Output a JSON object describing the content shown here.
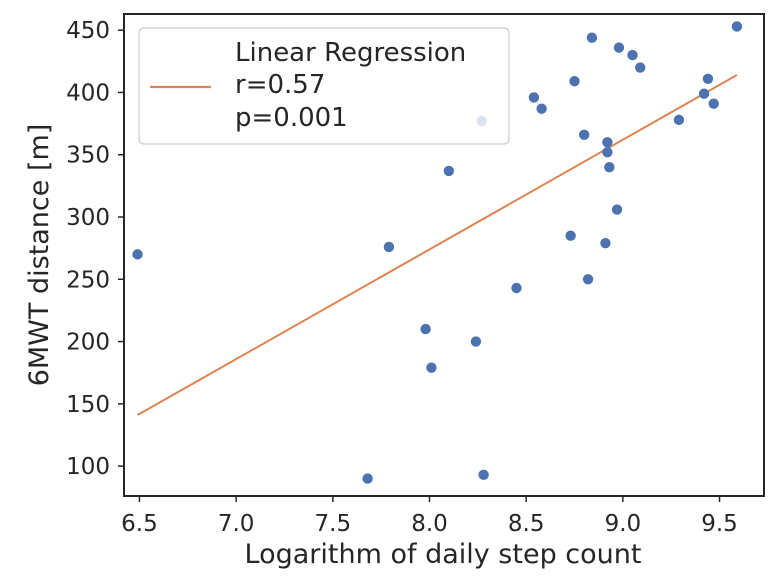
{
  "chart_data": {
    "type": "scatter",
    "title": "",
    "xlabel": "Logarithm of daily step count",
    "ylabel": "6MWT distance [m]",
    "xlim": [
      6.42,
      9.73
    ],
    "ylim": [
      76,
      463
    ],
    "xticks": [
      6.5,
      7.0,
      7.5,
      8.0,
      8.5,
      9.0,
      9.5
    ],
    "xtick_labels": [
      "6.5",
      "7.0",
      "7.5",
      "8.0",
      "8.5",
      "9.0",
      "9.5"
    ],
    "yticks": [
      100,
      150,
      200,
      250,
      300,
      350,
      400,
      450
    ],
    "ytick_labels": [
      "100",
      "150",
      "200",
      "250",
      "300",
      "350",
      "400",
      "450"
    ],
    "grid": false,
    "series": [
      {
        "name": "data",
        "kind": "scatter",
        "color": "#4c72b0",
        "points": [
          {
            "x": 6.49,
            "y": 270
          },
          {
            "x": 7.68,
            "y": 90
          },
          {
            "x": 7.79,
            "y": 276
          },
          {
            "x": 7.98,
            "y": 210
          },
          {
            "x": 8.01,
            "y": 179
          },
          {
            "x": 8.1,
            "y": 337
          },
          {
            "x": 8.24,
            "y": 200
          },
          {
            "x": 8.27,
            "y": 377
          },
          {
            "x": 8.28,
            "y": 93
          },
          {
            "x": 8.45,
            "y": 243
          },
          {
            "x": 8.54,
            "y": 396
          },
          {
            "x": 8.58,
            "y": 387
          },
          {
            "x": 8.73,
            "y": 285
          },
          {
            "x": 8.75,
            "y": 409
          },
          {
            "x": 8.8,
            "y": 366
          },
          {
            "x": 8.82,
            "y": 250
          },
          {
            "x": 8.84,
            "y": 444
          },
          {
            "x": 8.91,
            "y": 279
          },
          {
            "x": 8.92,
            "y": 352
          },
          {
            "x": 8.92,
            "y": 360
          },
          {
            "x": 8.93,
            "y": 340
          },
          {
            "x": 8.97,
            "y": 306
          },
          {
            "x": 8.98,
            "y": 436
          },
          {
            "x": 9.05,
            "y": 430
          },
          {
            "x": 9.09,
            "y": 420
          },
          {
            "x": 9.29,
            "y": 378
          },
          {
            "x": 9.42,
            "y": 399
          },
          {
            "x": 9.44,
            "y": 411
          },
          {
            "x": 9.47,
            "y": 391
          },
          {
            "x": 9.59,
            "y": 453
          }
        ]
      },
      {
        "name": "Linear Regression",
        "kind": "line",
        "color": "#dd8452",
        "x": [
          6.49,
          9.59
        ],
        "y": [
          141,
          414
        ]
      }
    ],
    "legend": {
      "location": "top-left",
      "lines": [
        "Linear Regression",
        "r=0.57",
        "p=0.001"
      ]
    }
  }
}
